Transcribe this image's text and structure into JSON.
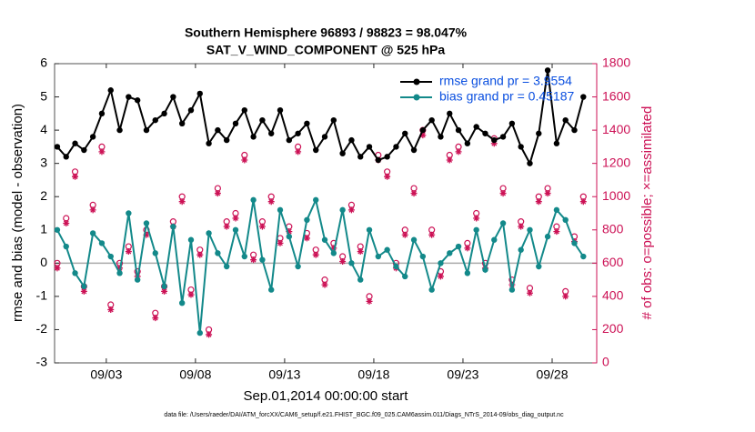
{
  "chart_data": {
    "type": "line",
    "title": "Southern Hemisphere 96893 / 98823 = 98.047%",
    "subtitle": "SAT_V_WIND_COMPONENT @ 525 hPa",
    "x_label": "Sep.01,2014 00:00:00 start",
    "y_label": "rmse and bias (model - observation)",
    "y2_label": "# of obs: o=possible; ×=assimilated",
    "footnote": "data file: /Users/raeder/DAI/ATM_forcXX/CAM6_setup/f.e21.FHIST_BGC.f09_025.CAM6assim.011/Diags_NTrS_2014-09/obs_diag_output.nc",
    "xlim": [
      0.1,
      30.5
    ],
    "xticks": [
      {
        "value": 3,
        "label": "09/03"
      },
      {
        "value": 8,
        "label": "09/08"
      },
      {
        "value": 13,
        "label": "09/13"
      },
      {
        "value": 18,
        "label": "09/18"
      },
      {
        "value": 23,
        "label": "09/23"
      },
      {
        "value": 28,
        "label": "09/28"
      }
    ],
    "ylim": [
      -3,
      6
    ],
    "yticks": [
      -3,
      -2,
      -1,
      0,
      1,
      2,
      3,
      4,
      5,
      6
    ],
    "y2lim": [
      0,
      1800
    ],
    "y2ticks": [
      0,
      200,
      400,
      600,
      800,
      1000,
      1200,
      1400,
      1600,
      1800
    ],
    "legend": "upper right",
    "x": [
      0.25,
      0.75,
      1.25,
      1.75,
      2.25,
      2.75,
      3.25,
      3.75,
      4.25,
      4.75,
      5.25,
      5.75,
      6.25,
      6.75,
      7.25,
      7.75,
      8.25,
      8.75,
      9.25,
      9.75,
      10.25,
      10.75,
      11.25,
      11.75,
      12.25,
      12.75,
      13.25,
      13.75,
      14.25,
      14.75,
      15.25,
      15.75,
      16.25,
      16.75,
      17.25,
      17.75,
      18.25,
      18.75,
      19.25,
      19.75,
      20.25,
      20.75,
      21.25,
      21.75,
      22.25,
      22.75,
      23.25,
      23.75,
      24.25,
      24.75,
      25.25,
      25.75,
      26.25,
      26.75,
      27.25,
      27.75,
      28.25,
      28.75,
      29.25,
      29.75
    ],
    "series": [
      {
        "name": "rmse grand pr = 3.9554",
        "color": "#000000",
        "values": [
          3.5,
          3.2,
          3.6,
          3.4,
          3.8,
          4.5,
          5.2,
          4.0,
          5.0,
          4.9,
          4.0,
          4.3,
          4.5,
          5.0,
          4.2,
          4.6,
          5.1,
          3.6,
          4.0,
          3.7,
          4.2,
          4.6,
          3.8,
          4.3,
          3.9,
          4.6,
          3.7,
          3.9,
          4.2,
          3.4,
          3.8,
          4.3,
          3.3,
          3.7,
          3.2,
          3.5,
          3.1,
          3.2,
          3.5,
          3.9,
          3.4,
          4.0,
          4.3,
          3.8,
          4.5,
          4.0,
          3.6,
          4.1,
          3.9,
          3.7,
          3.8,
          4.2,
          3.5,
          3.0,
          3.9,
          5.8,
          3.6,
          4.3,
          4.0,
          5.0
        ]
      },
      {
        "name": "bias grand pr = 0.45187",
        "color": "#13898a",
        "values": [
          1.0,
          0.5,
          -0.3,
          -0.7,
          0.9,
          0.6,
          0.2,
          -0.3,
          1.5,
          -0.5,
          1.2,
          0.3,
          -0.7,
          1.1,
          -1.2,
          0.7,
          -2.1,
          0.9,
          0.3,
          -0.1,
          1.0,
          0.2,
          1.9,
          0.1,
          -0.8,
          1.6,
          0.8,
          -0.1,
          1.3,
          1.9,
          0.7,
          0.3,
          1.6,
          0.0,
          -0.5,
          1.0,
          0.2,
          0.4,
          -0.1,
          -0.4,
          0.7,
          0.2,
          -0.8,
          0.0,
          0.3,
          0.5,
          -0.3,
          1.0,
          -0.2,
          0.7,
          1.2,
          -0.8,
          0.4,
          1.0,
          -0.1,
          0.8,
          1.6,
          1.3,
          0.6,
          0.2
        ]
      }
    ],
    "obs_series": [
      {
        "marker": "o",
        "axis": "y2",
        "color": "#cc1155",
        "values": [
          600,
          870,
          1150,
          460,
          950,
          1300,
          350,
          600,
          700,
          550,
          800,
          300,
          460,
          850,
          1000,
          440,
          680,
          200,
          1050,
          850,
          900,
          1250,
          650,
          850,
          1000,
          750,
          820,
          1300,
          780,
          680,
          500,
          720,
          640,
          950,
          700,
          400,
          1250,
          1150,
          600,
          800,
          1050,
          1400,
          800,
          550,
          1250,
          1300,
          720,
          900,
          600,
          1350,
          1050,
          500,
          850,
          450,
          1000,
          1050,
          820,
          430,
          760,
          1000
        ]
      },
      {
        "marker": "*",
        "axis": "y2",
        "color": "#cc1155",
        "values": [
          570,
          840,
          1120,
          430,
          920,
          1270,
          320,
          570,
          670,
          520,
          770,
          270,
          430,
          820,
          970,
          410,
          650,
          170,
          1020,
          820,
          870,
          1220,
          620,
          820,
          970,
          720,
          790,
          1270,
          750,
          650,
          470,
          690,
          610,
          920,
          670,
          370,
          1220,
          1120,
          570,
          770,
          1020,
          1370,
          770,
          520,
          1220,
          1270,
          690,
          870,
          570,
          1320,
          1020,
          470,
          820,
          420,
          970,
          1020,
          790,
          400,
          730,
          970
        ]
      }
    ]
  }
}
